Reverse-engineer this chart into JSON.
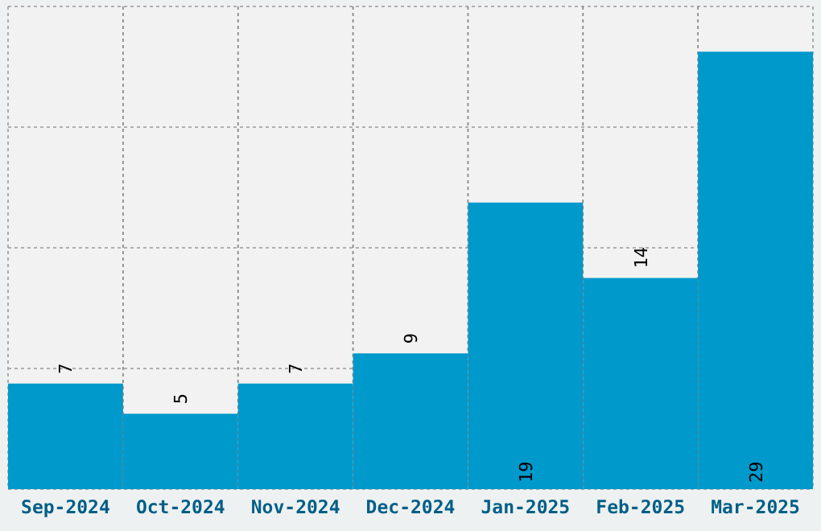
{
  "chart_data": {
    "type": "bar",
    "categories": [
      "Sep-2024",
      "Oct-2024",
      "Nov-2024",
      "Dec-2024",
      "Jan-2025",
      "Feb-2025",
      "Mar-2025"
    ],
    "values": [
      7,
      5,
      7,
      9,
      19,
      14,
      29
    ],
    "color": "#0099cc",
    "ylim": [
      0,
      32
    ],
    "yticks": [
      {
        "value": 0,
        "label": null
      },
      {
        "value": 8,
        "label": null
      },
      {
        "value": 16,
        "label": null
      },
      {
        "value": 24,
        "label": null
      },
      {
        "value": 32,
        "label": null
      }
    ],
    "tick_labels": "x",
    "grid": true,
    "data_labels": true
  }
}
